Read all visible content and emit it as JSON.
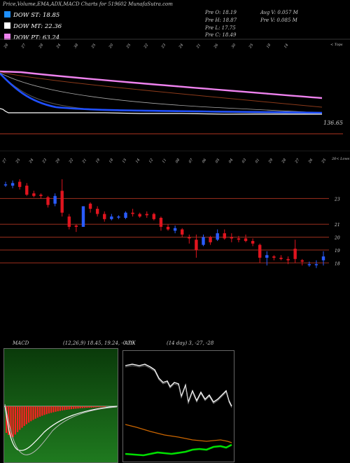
{
  "header": {
    "title": "Price,Volume,EMA,ADX,MACD Charts for 519602 MunafaSutra.com"
  },
  "legend": [
    {
      "label": "DOW ST: 18.85",
      "color": "#1e90ff"
    },
    {
      "label": "DOW MT: 22.36",
      "color": "#ffffff"
    },
    {
      "label": "DOW PT: 63.24",
      "color": "#ee82ee"
    }
  ],
  "ohlc": {
    "open": "Pre   O: 18.19",
    "high": "Pre   H: 18.87",
    "low": "Pre   L: 17.75",
    "close": "Pre   C: 18.49",
    "avg_volume": "Avg V: 0.057 M",
    "prev_volume": "Pre   V: 0.085 M"
  },
  "top_panel": {
    "date_labels": [
      "28",
      "27",
      "28",
      "24",
      "38",
      "25",
      "20",
      "25",
      "22",
      "23",
      "24",
      "21",
      "26",
      "30",
      "25",
      "18",
      "14"
    ],
    "label_high": "136.65",
    "label_top": "< Tops",
    "colors": {
      "pink": "#ee82ee",
      "blue": "#2050ff",
      "brown": "#8b3a1a",
      "white": "#ffffff"
    }
  },
  "price_panel": {
    "date_labels": [
      "27",
      "25",
      "24",
      "23",
      "29",
      "22",
      "21",
      "19",
      "18",
      "15",
      "14",
      "12",
      "11",
      "08",
      "07",
      "06",
      "05",
      "04",
      "03",
      "01",
      "29",
      "28",
      "27",
      "26",
      "25"
    ],
    "label_lows": "26< Lows",
    "price_levels": [
      "23",
      "21",
      "20",
      "19",
      "18"
    ],
    "candles": [
      {
        "o": 24.1,
        "h": 24.3,
        "l": 23.9,
        "c": 24.1
      },
      {
        "o": 24.0,
        "h": 24.4,
        "l": 23.8,
        "c": 24.2
      },
      {
        "o": 24.3,
        "h": 24.5,
        "l": 23.7,
        "c": 23.9
      },
      {
        "o": 24.0,
        "h": 24.2,
        "l": 23.2,
        "c": 23.3
      },
      {
        "o": 23.4,
        "h": 23.6,
        "l": 23.1,
        "c": 23.2
      },
      {
        "o": 23.3,
        "h": 23.4,
        "l": 23.0,
        "c": 23.2
      },
      {
        "o": 23.1,
        "h": 23.2,
        "l": 22.3,
        "c": 22.5
      },
      {
        "o": 22.6,
        "h": 23.4,
        "l": 22.4,
        "c": 23.2
      },
      {
        "o": 23.6,
        "h": 24.5,
        "l": 21.6,
        "c": 21.9
      },
      {
        "o": 21.6,
        "h": 21.8,
        "l": 20.6,
        "c": 20.8
      },
      {
        "o": 20.9,
        "h": 21.0,
        "l": 20.4,
        "c": 20.8
      },
      {
        "o": 20.8,
        "h": 22.4,
        "l": 20.8,
        "c": 22.4
      },
      {
        "o": 22.6,
        "h": 22.7,
        "l": 21.9,
        "c": 22.2
      },
      {
        "o": 22.2,
        "h": 22.4,
        "l": 21.6,
        "c": 21.8
      },
      {
        "o": 21.8,
        "h": 22.0,
        "l": 21.2,
        "c": 21.4
      },
      {
        "o": 21.4,
        "h": 21.8,
        "l": 21.3,
        "c": 21.6
      },
      {
        "o": 21.6,
        "h": 21.7,
        "l": 21.4,
        "c": 21.6
      },
      {
        "o": 21.5,
        "h": 22.0,
        "l": 21.4,
        "c": 21.9
      },
      {
        "o": 21.9,
        "h": 22.2,
        "l": 21.6,
        "c": 21.8
      },
      {
        "o": 21.8,
        "h": 21.9,
        "l": 21.5,
        "c": 21.6
      },
      {
        "o": 21.8,
        "h": 22.0,
        "l": 21.5,
        "c": 21.7
      },
      {
        "o": 21.8,
        "h": 21.9,
        "l": 21.3,
        "c": 21.4
      },
      {
        "o": 21.5,
        "h": 21.6,
        "l": 20.5,
        "c": 20.8
      },
      {
        "o": 20.8,
        "h": 21.0,
        "l": 20.5,
        "c": 20.6
      },
      {
        "o": 20.5,
        "h": 20.9,
        "l": 20.3,
        "c": 20.7
      },
      {
        "o": 20.6,
        "h": 20.7,
        "l": 20.0,
        "c": 20.2
      },
      {
        "o": 20.0,
        "h": 20.2,
        "l": 19.5,
        "c": 19.9
      },
      {
        "o": 19.8,
        "h": 20.2,
        "l": 18.4,
        "c": 19.0
      },
      {
        "o": 19.4,
        "h": 20.2,
        "l": 19.3,
        "c": 20.0
      },
      {
        "o": 20.0,
        "h": 20.1,
        "l": 19.4,
        "c": 19.6
      },
      {
        "o": 19.8,
        "h": 20.6,
        "l": 19.7,
        "c": 20.3
      },
      {
        "o": 20.3,
        "h": 20.6,
        "l": 19.8,
        "c": 19.9
      },
      {
        "o": 20.0,
        "h": 20.3,
        "l": 19.6,
        "c": 19.9
      },
      {
        "o": 19.9,
        "h": 20.1,
        "l": 19.6,
        "c": 19.8
      },
      {
        "o": 19.9,
        "h": 20.2,
        "l": 19.6,
        "c": 19.7
      },
      {
        "o": 19.7,
        "h": 19.9,
        "l": 19.3,
        "c": 19.5
      },
      {
        "o": 19.4,
        "h": 19.5,
        "l": 18.0,
        "c": 18.4
      },
      {
        "o": 18.4,
        "h": 18.9,
        "l": 17.8,
        "c": 18.6
      },
      {
        "o": 18.5,
        "h": 18.6,
        "l": 18.2,
        "c": 18.4
      },
      {
        "o": 18.4,
        "h": 18.6,
        "l": 18.2,
        "c": 18.3
      },
      {
        "o": 18.3,
        "h": 18.5,
        "l": 17.9,
        "c": 18.2
      },
      {
        "o": 19.1,
        "h": 19.8,
        "l": 18.0,
        "c": 18.3
      },
      {
        "o": 18.2,
        "h": 18.3,
        "l": 17.8,
        "c": 18.1
      },
      {
        "o": 17.9,
        "h": 18.1,
        "l": 17.7,
        "c": 17.9
      },
      {
        "o": 17.9,
        "h": 18.2,
        "l": 17.6,
        "c": 17.9
      },
      {
        "o": 18.2,
        "h": 18.9,
        "l": 17.8,
        "c": 18.5
      }
    ]
  },
  "macd": {
    "title": "MACD",
    "values": "(12,26,9) 18.45, 19.24, -0.79"
  },
  "adx": {
    "title": "ADX",
    "values": "(14 day) 3, -27, -28"
  },
  "chart_data": [
    {
      "type": "line",
      "panel": "ema",
      "series": [
        {
          "name": "DOW PT: 63.24",
          "color": "#ee82ee"
        },
        {
          "name": "DOW ST: 18.85",
          "color": "#1e90ff"
        },
        {
          "name": "DOW MT: 22.36",
          "color": "#ffffff"
        }
      ]
    },
    {
      "type": "candlestick",
      "panel": "price",
      "y_ticks": [
        23,
        21,
        20,
        19,
        18
      ],
      "ylim": [
        17.2,
        25.2
      ]
    },
    {
      "type": "bar",
      "panel": "macd",
      "params": "12,26,9",
      "values": [
        18.45,
        19.24,
        -0.79
      ]
    },
    {
      "type": "line",
      "panel": "adx",
      "params": "14 day",
      "values": [
        3,
        -27,
        -28
      ]
    }
  ]
}
